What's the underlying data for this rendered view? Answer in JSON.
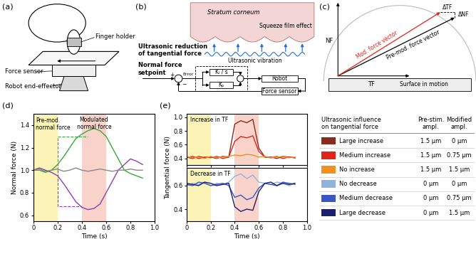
{
  "panel_labels": [
    "(a)",
    "(b)",
    "(c)",
    "(d)",
    "(e)"
  ],
  "panel_a": {
    "finger_holder": "Finger holder",
    "force_sensor": "Force sensor",
    "robot": "Robot end-effector"
  },
  "panel_b": {
    "stratum": "Stratum corneum",
    "squeeze": "Squeeze film effect",
    "reduction": "Ultrasonic reduction\nof tangential force",
    "vibration": "Ultrasonic vibration",
    "setpoint": "Normal force\nsetpoint",
    "error": "Error",
    "ki": "Kᵢ / s",
    "kp": "Kₚ",
    "plus": "+",
    "minus": "−",
    "robot": "Robot",
    "sensor": "Force sensor"
  },
  "panel_c": {
    "nf": "NF",
    "tf": "TF",
    "dtf": "ΔTF",
    "dnf": "ΔNF",
    "mod": "Mod. force vector",
    "pre": "Pre-mod. force vector",
    "surface": "Surface in motion"
  },
  "chart_data": [
    {
      "type": "line",
      "xlabel": "Time (s)",
      "ylabel": "Normal force (N)",
      "annotations": [
        "Pre-mod.\nnormal force",
        "Modulated\nnormal force"
      ],
      "x": [
        0,
        0.05,
        0.1,
        0.15,
        0.2,
        0.25,
        0.3,
        0.35,
        0.4,
        0.45,
        0.5,
        0.55,
        0.6,
        0.65,
        0.7,
        0.75,
        0.8,
        0.85,
        0.9
      ],
      "series": [
        {
          "color": "#3aa83a",
          "values": [
            1.0,
            1.0,
            0.98,
            1.0,
            1.05,
            1.12,
            1.2,
            1.28,
            1.32,
            1.35,
            1.37,
            1.35,
            1.3,
            1.2,
            1.1,
            1.0,
            0.97,
            0.95,
            0.93
          ]
        },
        {
          "color": "#8e3fb0",
          "values": [
            1.0,
            1.02,
            1.0,
            0.98,
            0.95,
            0.88,
            0.8,
            0.72,
            0.67,
            0.65,
            0.66,
            0.7,
            0.8,
            0.9,
            1.0,
            1.05,
            1.1,
            1.08,
            1.05
          ]
        },
        {
          "color": "#888888",
          "values": [
            1.0,
            1.01,
            0.99,
            1.0,
            1.01,
            0.99,
            1.0,
            1.02,
            1.0,
            0.99,
            1.0,
            1.01,
            1.0,
            0.99,
            1.0,
            1.0,
            1.01,
            1.0,
            1.0
          ]
        }
      ],
      "spans": [
        {
          "from": 0,
          "to": 0.2,
          "color": "#fbf4b6"
        },
        {
          "from": 0.4,
          "to": 0.6,
          "color": "#f9d3c9"
        }
      ],
      "guides": [
        {
          "color": "#3aa83a",
          "x": [
            0.2,
            0.2,
            0.45
          ],
          "y": [
            1.0,
            1.3,
            1.3
          ]
        },
        {
          "color": "#8e3fb0",
          "x": [
            0.2,
            0.2,
            0.4
          ],
          "y": [
            1.0,
            0.68,
            0.68
          ]
        }
      ],
      "xlim": [
        0,
        1.0
      ],
      "ylim": [
        0.55,
        1.5
      ],
      "xticks": [
        0,
        0.2,
        0.4,
        0.6,
        0.8,
        1.0
      ],
      "yticks": [
        0.6,
        0.8,
        1.0,
        1.2,
        1.4
      ]
    },
    {
      "type": "line",
      "ylabel": "Tangential force (N)",
      "annotations": [
        "Increase in TF"
      ],
      "tick_labels": "y",
      "x": [
        0,
        0.05,
        0.1,
        0.15,
        0.2,
        0.25,
        0.3,
        0.35,
        0.4,
        0.45,
        0.5,
        0.55,
        0.6,
        0.65,
        0.7,
        0.75,
        0.8,
        0.85,
        0.9
      ],
      "series": [
        {
          "color": "#8b2a1f",
          "values": [
            0.42,
            0.4,
            0.43,
            0.41,
            0.42,
            0.4,
            0.43,
            0.42,
            0.9,
            0.95,
            0.92,
            0.97,
            0.55,
            0.42,
            0.42,
            0.4,
            0.43,
            0.42,
            0.41
          ]
        },
        {
          "color": "#e0241b",
          "values": [
            0.41,
            0.43,
            0.4,
            0.42,
            0.41,
            0.43,
            0.4,
            0.42,
            0.65,
            0.72,
            0.7,
            0.73,
            0.5,
            0.42,
            0.41,
            0.43,
            0.4,
            0.42,
            0.41
          ]
        },
        {
          "color": "#f0901e",
          "values": [
            0.43,
            0.41,
            0.42,
            0.4,
            0.43,
            0.41,
            0.42,
            0.43,
            0.45,
            0.44,
            0.46,
            0.45,
            0.42,
            0.43,
            0.41,
            0.42,
            0.43,
            0.41,
            0.42
          ]
        }
      ],
      "spans": [
        {
          "from": 0,
          "to": 0.2,
          "color": "#fbf4b6"
        },
        {
          "from": 0.4,
          "to": 0.6,
          "color": "#f9d3c9"
        }
      ],
      "xlim": [
        0,
        1.0
      ],
      "ylim": [
        0.3,
        1.05
      ],
      "xticks": [
        0,
        0.2,
        0.4,
        0.6,
        0.8,
        1.0
      ],
      "yticks": [
        0.4,
        0.6,
        0.8,
        1.0
      ]
    },
    {
      "type": "line",
      "xlabel": "Time (s)",
      "annotations": [
        "Decrease in TF"
      ],
      "x": [
        0,
        0.05,
        0.1,
        0.15,
        0.2,
        0.25,
        0.3,
        0.35,
        0.4,
        0.45,
        0.5,
        0.55,
        0.6,
        0.65,
        0.7,
        0.75,
        0.8,
        0.85,
        0.9
      ],
      "series": [
        {
          "color": "#8fb3e0",
          "values": [
            0.6,
            0.62,
            0.61,
            0.63,
            0.6,
            0.62,
            0.61,
            0.63,
            0.68,
            0.7,
            0.66,
            0.69,
            0.63,
            0.62,
            0.61,
            0.63,
            0.62,
            0.6,
            0.62
          ]
        },
        {
          "color": "#3a57c4",
          "values": [
            0.61,
            0.6,
            0.63,
            0.62,
            0.6,
            0.61,
            0.62,
            0.6,
            0.5,
            0.52,
            0.48,
            0.5,
            0.58,
            0.62,
            0.61,
            0.6,
            0.63,
            0.62,
            0.61
          ]
        },
        {
          "color": "#1c1f6e",
          "values": [
            0.62,
            0.61,
            0.6,
            0.63,
            0.62,
            0.6,
            0.61,
            0.62,
            0.42,
            0.38,
            0.4,
            0.39,
            0.55,
            0.62,
            0.63,
            0.6,
            0.62,
            0.61,
            0.62
          ]
        }
      ],
      "spans": [
        {
          "from": 0,
          "to": 0.2,
          "color": "#fbf4b6"
        },
        {
          "from": 0.4,
          "to": 0.6,
          "color": "#f9d3c9"
        }
      ],
      "xlim": [
        0,
        1.0
      ],
      "ylim": [
        0.3,
        0.75
      ],
      "xticks": [
        0,
        0.2,
        0.4,
        0.6,
        0.8,
        1.0
      ],
      "yticks": [
        0.4,
        0.6
      ]
    }
  ],
  "table": {
    "header": [
      "Ultrasonic influence\non tangential force",
      "Pre-stim.\nampl.",
      "Modified\nampl."
    ],
    "rows": [
      {
        "color": "#8b2a1f",
        "cells": [
          "Large increase",
          "1.5 µm",
          "0 µm"
        ]
      },
      {
        "color": "#e0241b",
        "cells": [
          "Medium increase",
          "1.5 µm",
          "0.75 µm"
        ]
      },
      {
        "color": "#f0901e",
        "cells": [
          "No increase",
          "1.5 µm",
          "1.5 µm"
        ]
      },
      {
        "color": "#8fb3e0",
        "cells": [
          "No decrease",
          "0 µm",
          "0 µm"
        ]
      },
      {
        "color": "#3a57c4",
        "cells": [
          "Medium decrease",
          "0 µm",
          "0.75 µm"
        ]
      },
      {
        "color": "#1c1f6e",
        "cells": [
          "Large decrease",
          "0 µm",
          "1.5 µm"
        ]
      }
    ]
  }
}
